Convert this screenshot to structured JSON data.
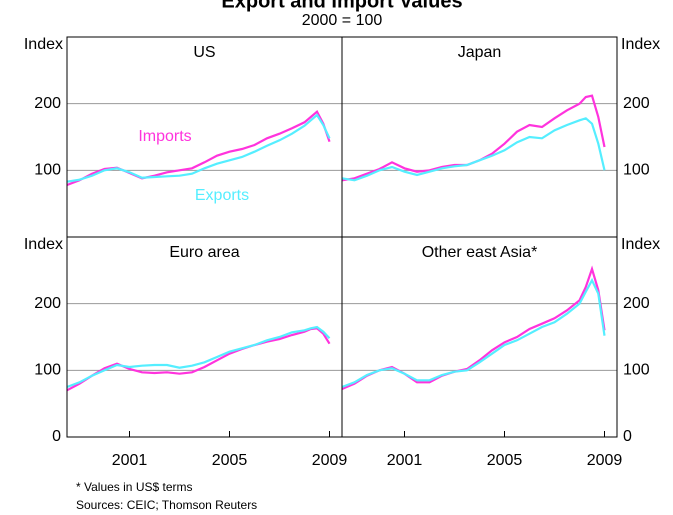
{
  "title": "Export and Import Values",
  "subtitle": "2000 = 100",
  "notes": [
    "*    Values in US$ terms",
    "Sources: CEIC; Thomson Reuters"
  ],
  "chart_data": [
    {
      "type": "line",
      "title": "US",
      "ylabel": "Index",
      "x": [
        1998.5,
        1999,
        1999.5,
        2000,
        2000.5,
        2001,
        2001.5,
        2002,
        2002.5,
        2003,
        2003.5,
        2004,
        2004.5,
        2005,
        2005.5,
        2006,
        2006.5,
        2007,
        2007.5,
        2008,
        2008.25,
        2008.5,
        2008.75,
        2009
      ],
      "xlim": [
        1998.5,
        2009.5
      ],
      "ylim": [
        0,
        300
      ],
      "yticks": [
        100,
        200
      ],
      "grid": true,
      "series": [
        {
          "name": "Imports",
          "color": "#ff33dd",
          "values": [
            78,
            85,
            95,
            102,
            104,
            96,
            88,
            92,
            97,
            100,
            103,
            112,
            122,
            128,
            132,
            138,
            148,
            155,
            163,
            172,
            180,
            188,
            170,
            143
          ]
        },
        {
          "name": "Exports",
          "color": "#55eeff",
          "values": [
            83,
            86,
            92,
            100,
            103,
            97,
            89,
            90,
            91,
            92,
            95,
            103,
            110,
            115,
            120,
            128,
            137,
            145,
            155,
            167,
            175,
            183,
            168,
            148
          ]
        }
      ]
    },
    {
      "type": "line",
      "title": "Japan",
      "ylabel": "Index",
      "x": [
        1998.5,
        1999,
        1999.5,
        2000,
        2000.5,
        2001,
        2001.5,
        2002,
        2002.5,
        2003,
        2003.5,
        2004,
        2004.5,
        2005,
        2005.5,
        2006,
        2006.5,
        2007,
        2007.5,
        2008,
        2008.25,
        2008.5,
        2008.75,
        2009
      ],
      "xlim": [
        1998.5,
        2009.5
      ],
      "ylim": [
        0,
        300
      ],
      "yticks": [
        100,
        200
      ],
      "grid": true,
      "series": [
        {
          "color": "#ff33dd",
          "values": [
            85,
            88,
            95,
            102,
            112,
            103,
            98,
            100,
            105,
            108,
            108,
            115,
            125,
            140,
            158,
            168,
            165,
            178,
            190,
            200,
            210,
            212,
            180,
            135
          ]
        },
        {
          "color": "#55eeff",
          "values": [
            88,
            85,
            92,
            100,
            105,
            98,
            93,
            98,
            103,
            106,
            108,
            115,
            122,
            130,
            142,
            150,
            148,
            160,
            168,
            175,
            178,
            170,
            140,
            100
          ]
        }
      ]
    },
    {
      "type": "line",
      "title": "Euro area",
      "ylabel": "Index",
      "x": [
        1998.5,
        1999,
        1999.5,
        2000,
        2000.5,
        2001,
        2001.5,
        2002,
        2002.5,
        2003,
        2003.5,
        2004,
        2004.5,
        2005,
        2005.5,
        2006,
        2006.5,
        2007,
        2007.5,
        2008,
        2008.25,
        2008.5,
        2008.75,
        2009
      ],
      "xlim": [
        1998.5,
        2009.5
      ],
      "xticks": [
        2001,
        2005,
        2009
      ],
      "ylim": [
        0,
        300
      ],
      "yticks": [
        0,
        100,
        200
      ],
      "grid": true,
      "series": [
        {
          "color": "#ff33dd",
          "values": [
            70,
            80,
            92,
            103,
            110,
            102,
            97,
            96,
            97,
            95,
            97,
            105,
            115,
            125,
            132,
            138,
            143,
            147,
            153,
            158,
            162,
            163,
            155,
            140
          ]
        },
        {
          "color": "#55eeff",
          "values": [
            75,
            82,
            92,
            100,
            108,
            105,
            107,
            108,
            108,
            104,
            107,
            112,
            120,
            128,
            133,
            138,
            145,
            150,
            157,
            160,
            163,
            165,
            158,
            148
          ]
        }
      ]
    },
    {
      "type": "line",
      "title": "Other east Asia*",
      "ylabel": "Index",
      "x": [
        1998.5,
        1999,
        1999.5,
        2000,
        2000.5,
        2001,
        2001.5,
        2002,
        2002.5,
        2003,
        2003.5,
        2004,
        2004.5,
        2005,
        2005.5,
        2006,
        2006.5,
        2007,
        2007.5,
        2008,
        2008.25,
        2008.5,
        2008.75,
        2009
      ],
      "xlim": [
        1998.5,
        2009.5
      ],
      "xticks": [
        2001,
        2005,
        2009
      ],
      "ylim": [
        0,
        300
      ],
      "yticks": [
        0,
        100,
        200
      ],
      "grid": true,
      "series": [
        {
          "color": "#ff33dd",
          "values": [
            72,
            80,
            92,
            100,
            105,
            95,
            82,
            82,
            92,
            98,
            102,
            115,
            130,
            142,
            150,
            162,
            170,
            178,
            190,
            205,
            225,
            252,
            220,
            160
          ]
        },
        {
          "color": "#55eeff",
          "values": [
            75,
            82,
            93,
            100,
            103,
            95,
            85,
            85,
            93,
            98,
            100,
            112,
            125,
            138,
            145,
            155,
            165,
            172,
            185,
            200,
            218,
            235,
            215,
            152
          ]
        }
      ]
    }
  ]
}
